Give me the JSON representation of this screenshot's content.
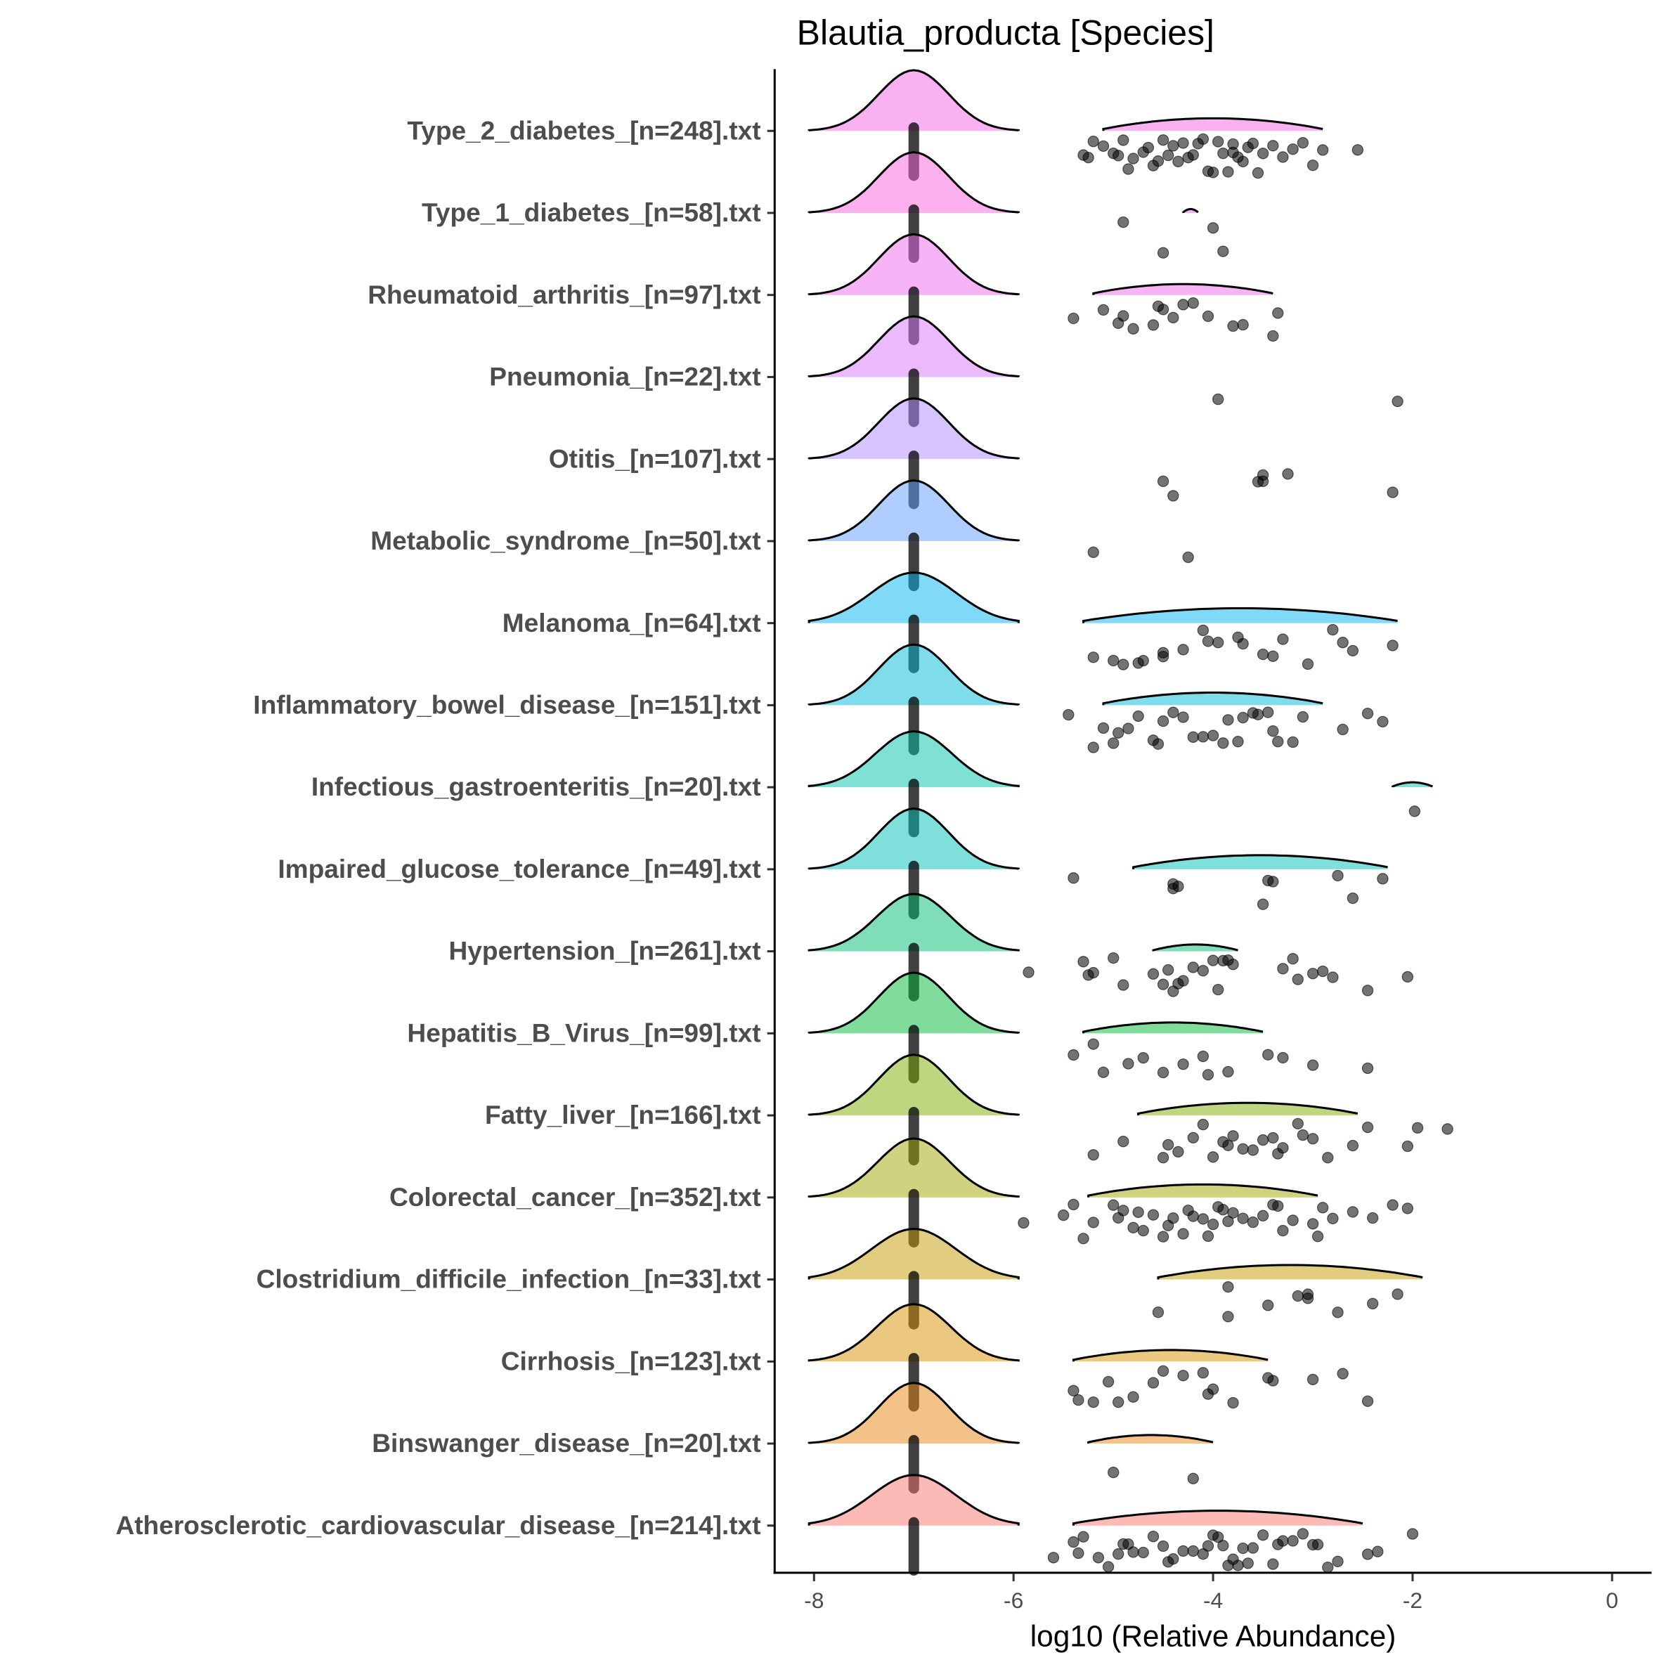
{
  "chart_data": {
    "type": "ridgeline-scatter",
    "title": "Blautia_producta [Species]",
    "xlabel": "log10 (Relative Abundance)",
    "ylabel": "",
    "xlim": [
      -8.4,
      0.4
    ],
    "xticks": [
      "-8",
      "-6",
      "-4",
      "-2",
      "0"
    ],
    "xtick_values": [
      -8,
      -6,
      -4,
      -2,
      0
    ],
    "grid": false,
    "zero_value": -7,
    "groups": [
      {
        "label": "Type_2_diabetes_[n=248].txt",
        "color": "#F564E3",
        "zero_sd": 0.35,
        "ridge": [
          -5.1,
          -2.9
        ],
        "points": [
          -5.3,
          -5.25,
          -5.2,
          -5.1,
          -5.0,
          -4.95,
          -4.9,
          -4.85,
          -4.8,
          -4.7,
          -4.65,
          -4.6,
          -4.55,
          -4.5,
          -4.45,
          -4.4,
          -4.35,
          -4.3,
          -4.25,
          -4.2,
          -4.15,
          -4.1,
          -4.05,
          -4.0,
          -3.95,
          -3.9,
          -3.85,
          -3.8,
          -3.8,
          -3.75,
          -3.7,
          -3.65,
          -3.6,
          -3.55,
          -3.5,
          -3.4,
          -3.3,
          -3.2,
          -3.1,
          -3.0,
          -2.9,
          -2.55
        ]
      },
      {
        "label": "Type_1_diabetes_[n=58].txt",
        "color": "#F962DD",
        "zero_sd": 0.35,
        "ridge": [
          -4.3,
          -4.15
        ],
        "points": [
          -4.9,
          -4.5,
          -4.0,
          -3.9
        ]
      },
      {
        "label": "Rheumatoid_arthritis_[n=97].txt",
        "color": "#EE6AF0",
        "zero_sd": 0.35,
        "ridge": [
          -5.2,
          -3.4
        ],
        "points": [
          -5.4,
          -5.1,
          -4.95,
          -4.9,
          -4.8,
          -4.6,
          -4.55,
          -4.5,
          -4.4,
          -4.3,
          -4.2,
          -4.05,
          -3.8,
          -3.7,
          -3.4,
          -3.35
        ]
      },
      {
        "label": "Pneumonia_[n=22].txt",
        "color": "#D774FA",
        "zero_sd": 0.35,
        "ridge": null,
        "points": [
          -3.95,
          -2.15
        ]
      },
      {
        "label": "Otitis_[n=107].txt",
        "color": "#AE87FF",
        "zero_sd": 0.35,
        "ridge": null,
        "points": [
          -4.5,
          -4.4,
          -3.55,
          -3.5,
          -3.5,
          -3.25,
          -2.2
        ]
      },
      {
        "label": "Metabolic_syndrome_[n=50].txt",
        "color": "#619CFF",
        "zero_sd": 0.35,
        "ridge": null,
        "points": [
          -5.2,
          -4.25
        ]
      },
      {
        "label": "Melanoma_[n=64].txt",
        "color": "#00B4F0",
        "zero_sd": 0.42,
        "ridge": [
          -5.3,
          -2.15
        ],
        "points": [
          -5.2,
          -5.0,
          -4.9,
          -4.75,
          -4.7,
          -4.5,
          -4.5,
          -4.3,
          -4.1,
          -4.05,
          -3.95,
          -3.75,
          -3.7,
          -3.5,
          -3.4,
          -3.3,
          -3.05,
          -2.8,
          -2.7,
          -2.6,
          -2.2
        ]
      },
      {
        "label": "Inflammatory_bowel_disease_[n=151].txt",
        "color": "#00BCD8",
        "zero_sd": 0.35,
        "ridge": [
          -5.1,
          -2.9
        ],
        "points": [
          -5.45,
          -5.2,
          -5.1,
          -5.0,
          -4.95,
          -4.85,
          -4.75,
          -4.6,
          -4.55,
          -4.5,
          -4.4,
          -4.3,
          -4.2,
          -4.1,
          -4.0,
          -3.9,
          -3.85,
          -3.75,
          -3.7,
          -3.6,
          -3.55,
          -3.45,
          -3.4,
          -3.35,
          -3.2,
          -3.1,
          -2.7,
          -2.45,
          -2.3
        ]
      },
      {
        "label": "Infectious_gastroenteritis_[n=20].txt",
        "color": "#00C1AA",
        "zero_sd": 0.38,
        "ridge": [
          -2.2,
          -1.8
        ],
        "points": [
          -1.98
        ]
      },
      {
        "label": "Impaired_glucose_tolerance_[n=49].txt",
        "color": "#00C0B8",
        "zero_sd": 0.35,
        "ridge": [
          -4.8,
          -2.25
        ],
        "points": [
          -5.4,
          -4.4,
          -4.4,
          -4.35,
          -3.5,
          -3.45,
          -3.4,
          -2.75,
          -2.6,
          -2.3
        ]
      },
      {
        "label": "Hypertension_[n=261].txt",
        "color": "#00BE70",
        "zero_sd": 0.37,
        "ridge": [
          -4.6,
          -3.75
        ],
        "points": [
          -5.85,
          -5.3,
          -5.25,
          -5.2,
          -5.0,
          -4.9,
          -4.6,
          -4.5,
          -4.45,
          -4.4,
          -4.35,
          -4.3,
          -4.2,
          -4.1,
          -4.0,
          -3.95,
          -3.9,
          -3.85,
          -3.8,
          -3.3,
          -3.2,
          -3.15,
          -3.0,
          -2.9,
          -2.8,
          -2.45,
          -2.05
        ]
      },
      {
        "label": "Hepatitis_B_Virus_[n=99].txt",
        "color": "#00BA38",
        "zero_sd": 0.35,
        "ridge": [
          -5.3,
          -3.5
        ],
        "points": [
          -5.4,
          -5.2,
          -5.1,
          -4.85,
          -4.7,
          -4.5,
          -4.3,
          -4.1,
          -4.05,
          -3.85,
          -3.45,
          -3.3,
          -3.0,
          -2.45
        ]
      },
      {
        "label": "Fatty_liver_[n=166].txt",
        "color": "#7CAE00",
        "zero_sd": 0.35,
        "ridge": [
          -4.75,
          -2.55
        ],
        "points": [
          -5.2,
          -4.9,
          -4.5,
          -4.45,
          -4.35,
          -4.2,
          -4.1,
          -4.0,
          -3.9,
          -3.85,
          -3.8,
          -3.7,
          -3.6,
          -3.5,
          -3.4,
          -3.35,
          -3.3,
          -3.15,
          -3.1,
          -3.0,
          -2.85,
          -2.6,
          -2.45,
          -2.05,
          -1.95,
          -1.65
        ]
      },
      {
        "label": "Colorectal_cancer_[n=352].txt",
        "color": "#A3A500",
        "zero_sd": 0.36,
        "ridge": [
          -5.25,
          -2.95
        ],
        "points": [
          -5.9,
          -5.5,
          -5.4,
          -5.3,
          -5.2,
          -5.0,
          -4.95,
          -4.9,
          -4.8,
          -4.75,
          -4.7,
          -4.6,
          -4.5,
          -4.45,
          -4.4,
          -4.3,
          -4.25,
          -4.2,
          -4.1,
          -4.05,
          -4.0,
          -3.95,
          -3.9,
          -3.85,
          -3.8,
          -3.7,
          -3.6,
          -3.5,
          -3.4,
          -3.35,
          -3.3,
          -3.2,
          -3.0,
          -2.95,
          -2.9,
          -2.8,
          -2.6,
          -2.4,
          -2.2,
          -2.05
        ]
      },
      {
        "label": "Clostridium_difficile_infection_[n=33].txt",
        "color": "#C49A00",
        "zero_sd": 0.42,
        "ridge": [
          -4.55,
          -1.9
        ],
        "points": [
          -4.55,
          -3.85,
          -3.85,
          -3.45,
          -3.15,
          -3.05,
          -3.05,
          -2.75,
          -2.4,
          -2.15
        ]
      },
      {
        "label": "Cirrhosis_[n=123].txt",
        "color": "#D89000",
        "zero_sd": 0.37,
        "ridge": [
          -5.4,
          -3.45
        ],
        "points": [
          -5.4,
          -5.35,
          -5.2,
          -5.05,
          -4.95,
          -4.8,
          -4.6,
          -4.5,
          -4.3,
          -4.1,
          -4.05,
          -4.0,
          -3.8,
          -3.45,
          -3.4,
          -3.0,
          -2.7,
          -2.45
        ]
      },
      {
        "label": "Binswanger_disease_[n=20].txt",
        "color": "#E68613",
        "zero_sd": 0.35,
        "ridge": [
          -5.25,
          -4.0
        ],
        "points": [
          -5.0,
          -4.2
        ]
      },
      {
        "label": "Atherosclerotic_cardiovascular_disease_[n=214].txt",
        "color": "#F8766D",
        "zero_sd": 0.42,
        "ridge": [
          -5.4,
          -2.5
        ],
        "points": [
          -5.6,
          -5.4,
          -5.35,
          -5.3,
          -5.15,
          -5.05,
          -4.95,
          -4.9,
          -4.85,
          -4.8,
          -4.7,
          -4.6,
          -4.5,
          -4.45,
          -4.4,
          -4.3,
          -4.2,
          -4.1,
          -4.05,
          -4.0,
          -3.95,
          -3.9,
          -3.85,
          -3.8,
          -3.75,
          -3.7,
          -3.65,
          -3.6,
          -3.5,
          -3.4,
          -3.35,
          -3.3,
          -3.2,
          -3.1,
          -3.0,
          -2.95,
          -2.85,
          -2.75,
          -2.45,
          -2.35,
          -2.0
        ]
      }
    ]
  }
}
